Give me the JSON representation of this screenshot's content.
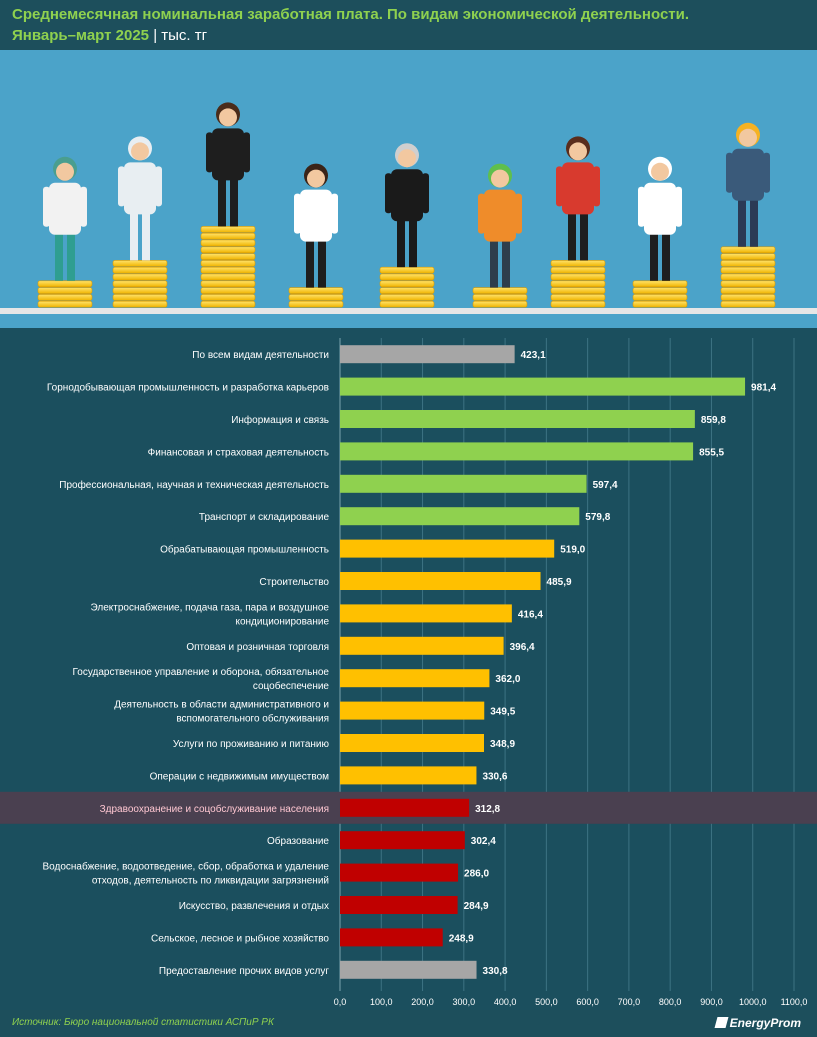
{
  "title_line1": "Среднемесячная номинальная заработная плата. По видам экономической деятельности.",
  "title_line2": "Январь–март 2025",
  "unit": "| тыс. тг",
  "source": "Источник: Бюро национальной статистики АСПиР РК",
  "brand": "EnergyProm",
  "illustration_icons": [
    "doctor-icon",
    "hazmat-worker-icon",
    "office-worker-icon",
    "teacher-icon",
    "judge-icon",
    "janitor-icon",
    "waitress-icon",
    "chef-icon",
    "builder-icon",
    "coin-stack-icon"
  ],
  "colors": {
    "green": "#8fd14f",
    "yellow": "#ffc000",
    "red": "#c00000",
    "gray": "#a6a6a6",
    "highlight_row": "#4a4050",
    "background": "#1b4f5e"
  },
  "chart_data": {
    "type": "bar",
    "orientation": "horizontal",
    "categories": [
      "По всем видам деятельности",
      "Горнодобывающая промышленность и разработка карьеров",
      "Информация и связь",
      "Финансовая и страховая деятельность",
      "Профессиональная, научная и техническая деятельность",
      "Транспорт и складирование",
      "Обрабатывающая промышленность",
      "Строительство",
      [
        "Электроснабжение, подача газа, пара и воздушное",
        "кондиционирование"
      ],
      "Оптовая и розничная торговля",
      [
        "Государственное управление и оборона, обязательное",
        "соцобеспечение"
      ],
      [
        "Деятельность в области административного и",
        "вспомогательного обслуживания"
      ],
      "Услуги по проживанию и питанию",
      "Операции с недвижимым имуществом",
      "Здравоохранение и соцобслуживание населения",
      "Образование",
      [
        "Водоснабжение, водоотведение, сбор, обработка и удаление",
        "отходов, деятельность по ликвидации загрязнений"
      ],
      "Искусство, развлечения и отдых",
      "Сельское, лесное и рыбное хозяйство",
      "Предоставление прочих видов услуг"
    ],
    "values": [
      423.1,
      981.4,
      859.8,
      855.5,
      597.4,
      579.8,
      519.0,
      485.9,
      416.4,
      396.4,
      362.0,
      349.5,
      348.9,
      330.6,
      312.8,
      302.4,
      286.0,
      284.9,
      248.9,
      330.8
    ],
    "value_labels": [
      "423,1",
      "981,4",
      "859,8",
      "855,5",
      "597,4",
      "579,8",
      "519,0",
      "485,9",
      "416,4",
      "396,4",
      "362,0",
      "349,5",
      "348,9",
      "330,6",
      "312,8",
      "302,4",
      "286,0",
      "284,9",
      "248,9",
      "330,8"
    ],
    "bar_colors": [
      "gray",
      "green",
      "green",
      "green",
      "green",
      "green",
      "yellow",
      "yellow",
      "yellow",
      "yellow",
      "yellow",
      "yellow",
      "yellow",
      "yellow",
      "red",
      "red",
      "red",
      "red",
      "red",
      "gray"
    ],
    "highlight_index": 14,
    "xlim": [
      0,
      1100
    ],
    "xticks": [
      0,
      100,
      200,
      300,
      400,
      500,
      600,
      700,
      800,
      900,
      1000,
      1100
    ],
    "xtick_labels": [
      "0,0",
      "100,0",
      "200,0",
      "300,0",
      "400,0",
      "500,0",
      "600,0",
      "700,0",
      "800,0",
      "900,0",
      "1000,0",
      "1100,0"
    ],
    "grid": "vertical"
  }
}
